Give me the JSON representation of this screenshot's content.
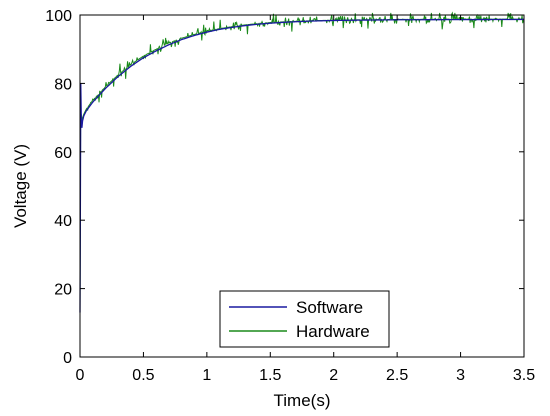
{
  "chart_data": {
    "type": "line",
    "xlabel": "Time(s)",
    "ylabel": "Voltage (V)",
    "xlim": [
      0,
      3.5
    ],
    "ylim": [
      0,
      100
    ],
    "xticks": [
      "0",
      "0.5",
      "1",
      "1.5",
      "2",
      "2.5",
      "3",
      "3.5"
    ],
    "yticks": [
      "0",
      "20",
      "40",
      "60",
      "80",
      "100"
    ],
    "grid": false,
    "legend": {
      "position": "bottom-center"
    },
    "series": [
      {
        "name": "Software",
        "color": "#1a1aa0",
        "x": [
          0,
          0.003,
          0.006,
          0.01,
          0.015,
          0.02,
          0.03,
          0.05,
          0.1,
          0.2,
          0.3,
          0.4,
          0.5,
          0.6,
          0.7,
          0.8,
          0.9,
          1.0,
          1.1,
          1.2,
          1.3,
          1.4,
          1.5,
          1.6,
          1.8,
          2.0,
          2.2,
          2.5,
          3.0,
          3.5
        ],
        "y": [
          13,
          45,
          80,
          70,
          67,
          69,
          70.5,
          72,
          74.5,
          78.5,
          82,
          85,
          87.5,
          89.5,
          91.3,
          92.8,
          94,
          95,
          95.8,
          96.4,
          96.9,
          97.3,
          97.6,
          97.85,
          98.2,
          98.4,
          98.5,
          98.6,
          98.65,
          98.7
        ]
      },
      {
        "name": "Hardware",
        "color": "#1a8a1a",
        "x": [
          0,
          0.003,
          0.006,
          0.01,
          0.015,
          0.02,
          0.03,
          0.05,
          0.1,
          0.2,
          0.3,
          0.4,
          0.5,
          0.6,
          0.7,
          0.8,
          0.9,
          1.0,
          1.1,
          1.2,
          1.3,
          1.4,
          1.5,
          1.6,
          1.8,
          2.0,
          2.2,
          2.5,
          3.0,
          3.5
        ],
        "y": [
          14,
          47,
          79,
          71,
          68.5,
          70,
          71,
          72.5,
          75,
          79,
          82.5,
          85.5,
          88,
          90,
          91.8,
          93.2,
          94.3,
          95.3,
          96,
          96.6,
          97.1,
          97.5,
          97.8,
          98,
          98.3,
          98.5,
          98.6,
          98.7,
          98.8,
          98.8
        ],
        "noise_amplitude": 1.2
      }
    ]
  }
}
